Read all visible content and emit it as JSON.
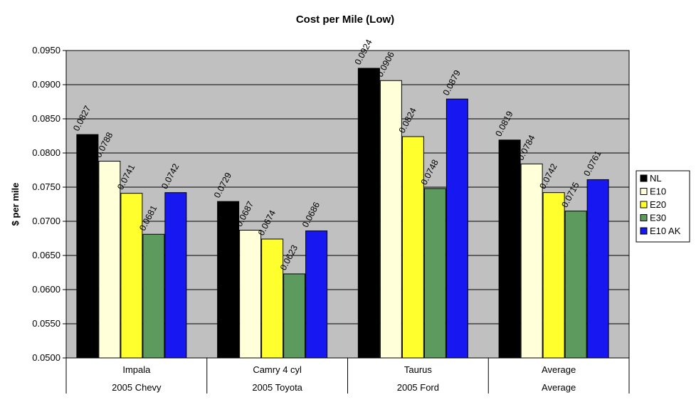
{
  "chart_data": {
    "type": "bar",
    "title": "Cost per Mile (Low)",
    "xlabel": "",
    "ylabel": "$ per mile",
    "ylim": [
      0.05,
      0.095
    ],
    "yticks": [
      "0.0500",
      "0.0550",
      "0.0600",
      "0.0650",
      "0.0700",
      "0.0750",
      "0.0800",
      "0.0850",
      "0.0900",
      "0.0950"
    ],
    "grid": true,
    "legend_position": "right",
    "categories": [
      "Impala",
      "Camry 4 cyl",
      "Taurus",
      "Average"
    ],
    "sub_categories": [
      "2005 Chevy",
      "2005 Toyota",
      "2005 Ford",
      "Average"
    ],
    "series": [
      {
        "name": "NL",
        "color": "#000000",
        "values": [
          0.0827,
          0.0729,
          0.0924,
          0.0819
        ],
        "labels": [
          "0.0827",
          "0.0729",
          "0.0924",
          "0.0819"
        ]
      },
      {
        "name": "E10",
        "color": "#ffffd9",
        "values": [
          0.0788,
          0.0687,
          0.0906,
          0.0784
        ],
        "labels": [
          "0.0788",
          "0.0687",
          "0.0906",
          "0.0784"
        ]
      },
      {
        "name": "E20",
        "color": "#ffff2e",
        "values": [
          0.0741,
          0.0674,
          0.0824,
          0.0742
        ],
        "labels": [
          "0.0741",
          "0.0674",
          "0.0824",
          "0.0742"
        ]
      },
      {
        "name": "E30",
        "color": "#5c9a5e",
        "values": [
          0.0681,
          0.0623,
          0.0748,
          0.0715
        ],
        "labels": [
          "0.0681",
          "0.0623",
          "0.0748",
          "0.0715"
        ]
      },
      {
        "name": "E10 AK",
        "color": "#1717f2",
        "values": [
          0.0742,
          0.0686,
          0.0879,
          0.0761
        ],
        "labels": [
          "0.0742",
          "0.0686",
          "0.0879",
          "0.0761"
        ]
      }
    ],
    "colors": {
      "plot_background": "#c0c0c0",
      "gridline": "#000000"
    }
  }
}
